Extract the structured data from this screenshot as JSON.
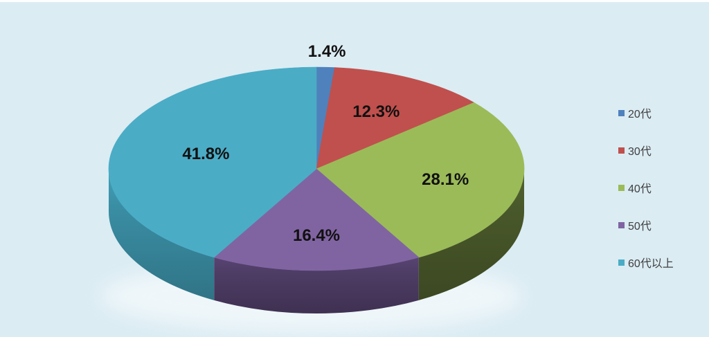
{
  "chart_data": {
    "type": "pie",
    "style": "3d",
    "title": "",
    "categories": [
      "20代",
      "30代",
      "40代",
      "50代",
      "60代以上"
    ],
    "values": [
      1.4,
      12.3,
      28.1,
      16.4,
      41.8
    ],
    "labels": [
      "1.4%",
      "12.3%",
      "28.1%",
      "16.4%",
      "41.8%"
    ],
    "colors": [
      "#4F81BD",
      "#C0504D",
      "#9BBB59",
      "#8064A2",
      "#4BACC6"
    ],
    "side_colors": [
      "#35567E",
      "#80352F",
      "#49582A",
      "#4D3C64",
      "#3A8DA3"
    ],
    "start_angle_deg": 0,
    "direction": "clockwise",
    "legend_position": "right",
    "background": "#DBECF3",
    "label_text_color": "#111111",
    "legend_text_color": "#3F3F3F"
  }
}
